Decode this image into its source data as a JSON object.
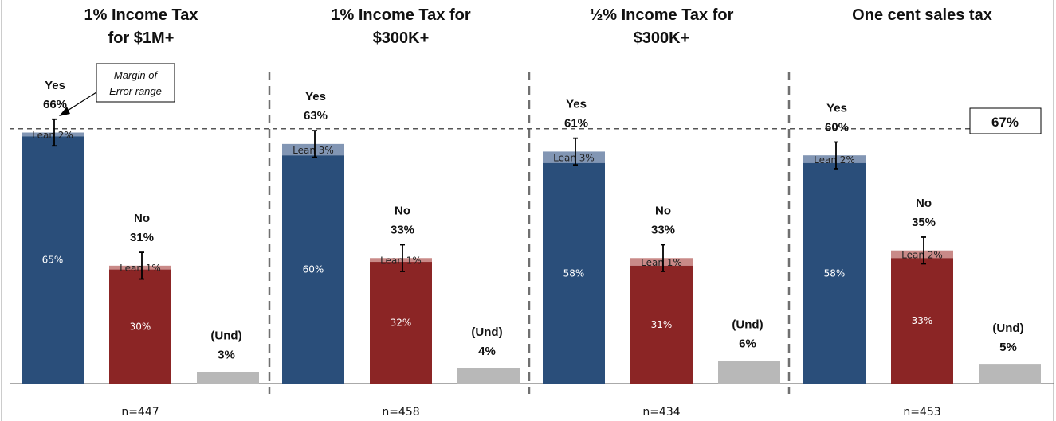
{
  "colors": {
    "yes_firm": "#2a4e7a",
    "yes_lean": "#8296b4",
    "no_firm": "#8b2525",
    "no_lean": "#c98a88",
    "und": "#b8b8b8",
    "error_bar": "#000000",
    "divider": "#707070",
    "reference": "#555555"
  },
  "chart_data": {
    "type": "bar",
    "stacked": true,
    "reference_line": {
      "value": 67,
      "label": "67%"
    },
    "moe_note": [
      "Margin of",
      "Error range"
    ],
    "groups": [
      {
        "title": [
          "1% Income Tax",
          "for $1M+"
        ],
        "n_label": "n=447",
        "yes": {
          "total": 66,
          "firm": 65,
          "lean": 2,
          "label": [
            "Yes",
            "66%"
          ],
          "firm_label": "65%",
          "lean_label": "Lean 2%",
          "error": 3.5
        },
        "no": {
          "total": 31,
          "firm": 30,
          "lean": 1,
          "label": [
            "No",
            "31%"
          ],
          "firm_label": "30%",
          "lean_label": "Lean 1%",
          "error": 3.5
        },
        "und": {
          "value": 3,
          "label": [
            "(Und)",
            "3%"
          ]
        }
      },
      {
        "title": [
          "1% Income Tax for",
          "$300K+"
        ],
        "n_label": "n=458",
        "yes": {
          "total": 63,
          "firm": 60,
          "lean": 3,
          "label": [
            "Yes",
            "63%"
          ],
          "firm_label": "60%",
          "lean_label": "Lean 3%",
          "error": 3.5
        },
        "no": {
          "total": 33,
          "firm": 32,
          "lean": 1,
          "label": [
            "No",
            "33%"
          ],
          "firm_label": "32%",
          "lean_label": "Lean 1%",
          "error": 3.5
        },
        "und": {
          "value": 4,
          "label": [
            "(Und)",
            "4%"
          ]
        }
      },
      {
        "title": [
          "½% Income Tax for",
          "$300K+"
        ],
        "n_label": "n=434",
        "yes": {
          "total": 61,
          "firm": 58,
          "lean": 3,
          "label": [
            "Yes",
            "61%"
          ],
          "firm_label": "58%",
          "lean_label": "Lean 3%",
          "error": 3.5
        },
        "no": {
          "total": 33,
          "firm": 31,
          "lean": 1,
          "label": [
            "No",
            "33%"
          ],
          "firm_label": "31%",
          "lean_label": "Lean 1%",
          "error": 3.5
        },
        "und": {
          "value": 6,
          "label": [
            "(Und)",
            "6%"
          ]
        }
      },
      {
        "title": [
          "One cent sales tax"
        ],
        "n_label": "n=453",
        "yes": {
          "total": 60,
          "firm": 58,
          "lean": 2,
          "label": [
            "Yes",
            "60%"
          ],
          "firm_label": "58%",
          "lean_label": "Lean 2%",
          "error": 3.5
        },
        "no": {
          "total": 35,
          "firm": 33,
          "lean": 2,
          "label": [
            "No",
            "35%"
          ],
          "firm_label": "33%",
          "lean_label": "Lean 2%",
          "error": 3.5
        },
        "und": {
          "value": 5,
          "label": [
            "(Und)",
            "5%"
          ]
        }
      }
    ]
  }
}
